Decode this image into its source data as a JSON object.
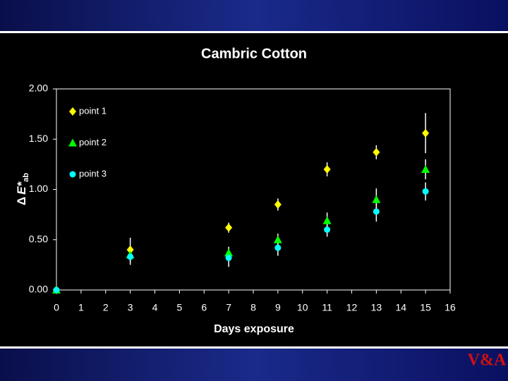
{
  "chart_data": {
    "type": "scatter",
    "title": "Cambric Cotton",
    "xlabel": "Days exposure",
    "ylabel": {
      "delta": "Δ",
      "symbol": "E*",
      "subscript": "ab"
    },
    "xlim": [
      0,
      16
    ],
    "xticks": [
      0,
      1,
      2,
      3,
      4,
      5,
      6,
      7,
      8,
      9,
      10,
      11,
      12,
      13,
      14,
      15,
      16
    ],
    "ylim": [
      0,
      2
    ],
    "yticks": [
      {
        "value": 0,
        "label": "0.00"
      },
      {
        "value": 0.5,
        "label": "0.50"
      },
      {
        "value": 1,
        "label": "1.00"
      },
      {
        "value": 1.5,
        "label": "1.50"
      },
      {
        "value": 2,
        "label": "2.00"
      }
    ],
    "legend": "upper-left",
    "x": [
      0,
      3,
      7,
      9,
      11,
      13,
      15
    ],
    "series": [
      {
        "name": "point 1",
        "color": "#ffff00",
        "marker": "diamond",
        "values": [
          0,
          0.4,
          0.62,
          0.85,
          1.2,
          1.37,
          1.56
        ],
        "errors": [
          0,
          0.12,
          0.05,
          0.06,
          0.07,
          0.07,
          0.2
        ]
      },
      {
        "name": "point 2",
        "color": "#00ff00",
        "marker": "triangle",
        "values": [
          0,
          0.35,
          0.37,
          0.5,
          0.69,
          0.9,
          1.2
        ],
        "errors": [
          0,
          0.03,
          0.06,
          0.06,
          0.08,
          0.11,
          0.1
        ]
      },
      {
        "name": "point 3",
        "color": "#00ffff",
        "marker": "circle",
        "values": [
          0,
          0.33,
          0.32,
          0.42,
          0.6,
          0.78,
          0.98
        ],
        "errors": [
          0,
          0.08,
          0.09,
          0.08,
          0.07,
          0.1,
          0.09
        ]
      }
    ]
  },
  "logo": "V&A"
}
